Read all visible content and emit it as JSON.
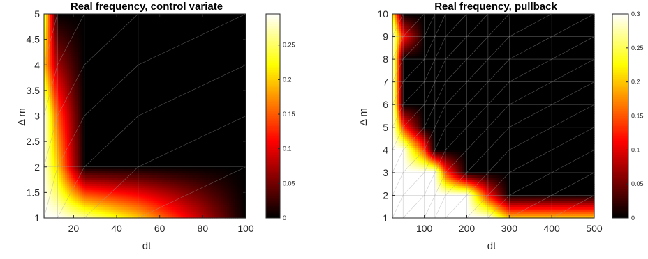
{
  "figure": {
    "background": "#ffffff",
    "colormap": "hot"
  },
  "chart_data": [
    {
      "type": "heatmap",
      "title": "Real frequency, control variate",
      "xlabel": "dt",
      "ylabel": "Δ m",
      "x": [
        6.25,
        12.5,
        25,
        50,
        100
      ],
      "y": [
        1,
        2,
        3,
        4,
        5
      ],
      "xlim": [
        6.25,
        100
      ],
      "ylim": [
        1,
        5
      ],
      "xticks": [
        20,
        40,
        60,
        80,
        100
      ],
      "xtick_labels": [
        "20",
        "40",
        "60",
        "80",
        "100"
      ],
      "yticks": [
        1,
        1.5,
        2,
        2.5,
        3,
        3.5,
        4,
        4.5,
        5
      ],
      "ytick_labels": [
        "1",
        "1.5",
        "2",
        "2.5",
        "3",
        "3.5",
        "4",
        "4.5",
        "5"
      ],
      "z": [
        [
          0.295,
          0.295,
          0.27,
          0.2,
          0
        ],
        [
          0.29,
          0.2,
          0.0,
          0.0,
          0.0
        ],
        [
          0.295,
          0.15,
          0.0,
          0.0,
          0.0
        ],
        [
          0.2,
          0.07,
          0.0,
          0.0,
          0.0
        ],
        [
          0.25,
          0.0,
          0.0,
          0.0,
          0.0
        ]
      ],
      "clim": [
        0,
        0.295
      ],
      "colorbar": {
        "ticks": [
          0,
          0.05,
          0.1,
          0.15,
          0.2,
          0.25
        ],
        "tick_labels": [
          "0",
          "0.05",
          "0.1",
          "0.15",
          "0.2",
          "0.25"
        ]
      },
      "grid_overlay": true
    },
    {
      "type": "heatmap",
      "title": "Real frequency, pullback",
      "xlabel": "dt",
      "ylabel": "Δ m",
      "x": [
        25,
        50,
        100,
        125,
        150,
        200,
        250,
        300,
        400,
        500
      ],
      "y": [
        1,
        2,
        3,
        4,
        5,
        6,
        7,
        8,
        9,
        10
      ],
      "xlim": [
        25,
        500
      ],
      "ylim": [
        1,
        10
      ],
      "xticks": [
        100,
        200,
        300,
        400,
        500
      ],
      "xtick_labels": [
        "100",
        "200",
        "300",
        "400",
        "500"
      ],
      "yticks": [
        1,
        2,
        3,
        4,
        5,
        6,
        7,
        8,
        9,
        10
      ],
      "ytick_labels": [
        "1",
        "2",
        "3",
        "4",
        "5",
        "6",
        "7",
        "8",
        "9",
        "10"
      ],
      "z": [
        [
          0.3,
          0.3,
          0.3,
          0.3,
          0.3,
          0.3,
          0.3,
          0.2,
          0.2,
          0.2
        ],
        [
          0.3,
          0.3,
          0.3,
          0.3,
          0.3,
          0.3,
          0.12,
          0.0,
          0.0,
          0.0
        ],
        [
          0.3,
          0.3,
          0.3,
          0.3,
          0.14,
          0.0,
          0.0,
          0.0,
          0.0,
          0.0
        ],
        [
          0.3,
          0.3,
          0.14,
          0.0,
          0.0,
          0.0,
          0.0,
          0.0,
          0.0,
          0.0
        ],
        [
          0.3,
          0.14,
          0.0,
          0.0,
          0.0,
          0.0,
          0.0,
          0.0,
          0.0,
          0.0
        ],
        [
          0.3,
          0.0,
          0.0,
          0.0,
          0.0,
          0.0,
          0.0,
          0.0,
          0.0,
          0.0
        ],
        [
          0.3,
          0.0,
          0.0,
          0.0,
          0.0,
          0.0,
          0.0,
          0.0,
          0.0,
          0.0
        ],
        [
          0.3,
          0.0,
          0.0,
          0.0,
          0.0,
          0.0,
          0.0,
          0.0,
          0.0,
          0.0
        ],
        [
          0.3,
          0.12,
          0.0,
          0.0,
          0.0,
          0.0,
          0.0,
          0.0,
          0.0,
          0.0
        ],
        [
          0.22,
          0.0,
          0.0,
          0.0,
          0.0,
          0.0,
          0.0,
          0.0,
          0.0,
          0.0
        ]
      ],
      "clim": [
        0,
        0.3
      ],
      "colorbar": {
        "ticks": [
          0,
          0.05,
          0.1,
          0.15,
          0.2,
          0.25,
          0.3
        ],
        "tick_labels": [
          "0",
          "0.05",
          "0.1",
          "0.15",
          "0.2",
          "0.25",
          "0.3"
        ]
      },
      "grid_overlay": true
    }
  ]
}
